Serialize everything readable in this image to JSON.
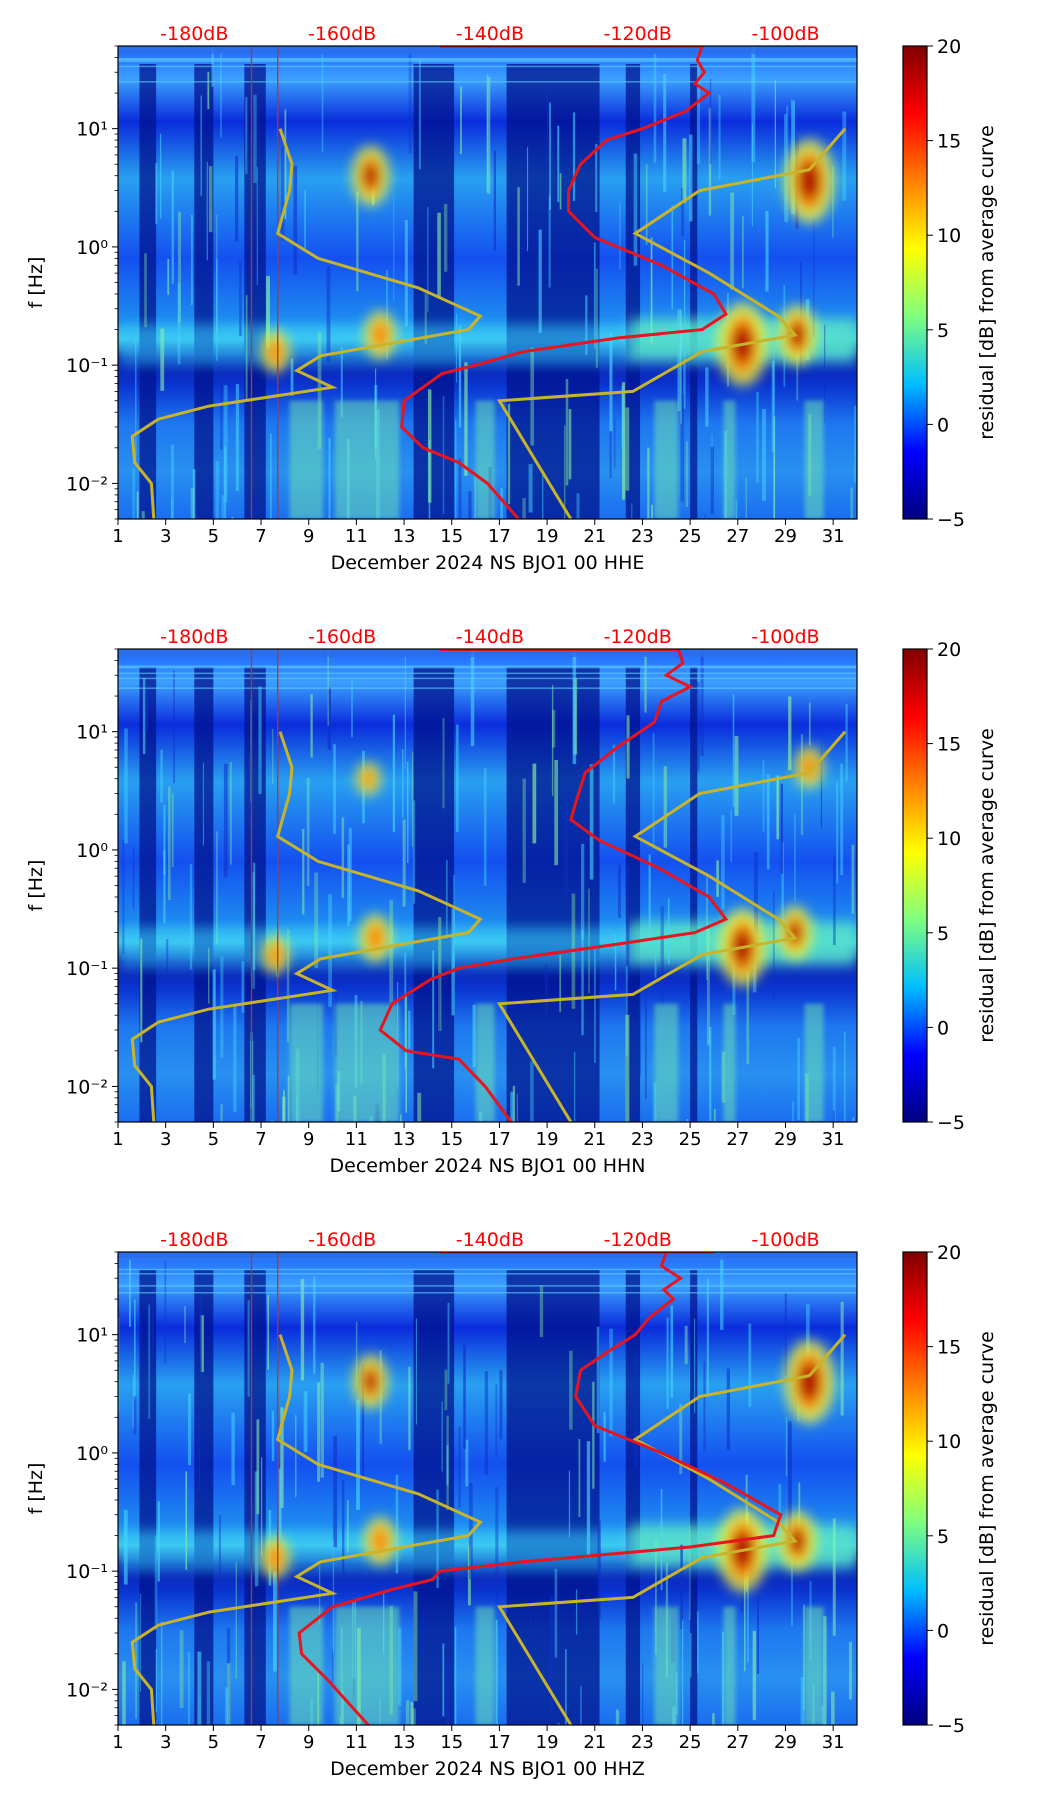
{
  "colormap_stops": [
    "#00007f",
    "#0000ff",
    "#00bfff",
    "#7fff7f",
    "#ffff00",
    "#ff8000",
    "#ff0000",
    "#800000"
  ],
  "colors": {
    "red_curve": "#e8141e",
    "model_curve": "#c8b42a",
    "vline": "#c83214",
    "db_label": "#ff0000"
  },
  "chart_data": [
    {
      "type": "heatmap",
      "xlabel": "December 2024 NS BJO1 00 HHE",
      "ylabel": "f [Hz]",
      "xlim": [
        1,
        32
      ],
      "xticks": [
        "1",
        "3",
        "5",
        "7",
        "9",
        "11",
        "13",
        "15",
        "17",
        "19",
        "21",
        "23",
        "25",
        "27",
        "29",
        "31"
      ],
      "ylim": [
        0.005,
        50
      ],
      "yticks": [
        "10⁻²",
        "10⁻¹",
        "10⁰",
        "10¹"
      ],
      "db_labels": [
        "-180dB",
        "-160dB",
        "-140dB",
        "-120dB",
        "-100dB"
      ],
      "colorbar": {
        "label": "residual [dB] from average curve",
        "min": -5,
        "max": 20,
        "ticks": [
          "20",
          "15",
          "10",
          "5",
          "0",
          "−5"
        ]
      },
      "vlines": [
        6.6,
        7.7
      ],
      "hot_spots": [
        [
          11.6,
          4.0,
          3.0
        ],
        [
          30.0,
          3.6,
          5.0
        ],
        [
          27.2,
          0.15,
          5.0
        ],
        [
          7.6,
          0.13,
          1.5
        ],
        [
          12.0,
          0.18,
          2.0
        ],
        [
          29.5,
          0.18,
          3.0
        ]
      ],
      "red_curve": [
        [
          25.5,
          50
        ],
        [
          25.3,
          38
        ],
        [
          25.6,
          30
        ],
        [
          25.2,
          24
        ],
        [
          25.8,
          20
        ],
        [
          24.8,
          14
        ],
        [
          23,
          10
        ],
        [
          21.5,
          8
        ],
        [
          20.4,
          5
        ],
        [
          19.9,
          3
        ],
        [
          19.9,
          2
        ],
        [
          21,
          1.2
        ],
        [
          23.8,
          0.7
        ],
        [
          26,
          0.4
        ],
        [
          26.5,
          0.27
        ],
        [
          25.5,
          0.2
        ],
        [
          22,
          0.17
        ],
        [
          18,
          0.13
        ],
        [
          16,
          0.1
        ],
        [
          14.6,
          0.085
        ],
        [
          13,
          0.05
        ],
        [
          12.9,
          0.03
        ],
        [
          13.8,
          0.02
        ],
        [
          15.3,
          0.015
        ],
        [
          16.5,
          0.01
        ],
        [
          17.8,
          0.005
        ]
      ],
      "red_top_segment": [
        [
          14.5,
          50
        ],
        [
          25.5,
          50
        ]
      ],
      "model_curve": [
        [
          7.8,
          10
        ],
        [
          8.3,
          5
        ],
        [
          8.2,
          3
        ],
        [
          7.7,
          1.3
        ],
        [
          9.4,
          0.8
        ],
        [
          13.6,
          0.45
        ],
        [
          16.2,
          0.26
        ],
        [
          15.7,
          0.2
        ],
        [
          9.5,
          0.12
        ],
        [
          8.5,
          0.09
        ],
        [
          10,
          0.065
        ],
        [
          4.8,
          0.045
        ],
        [
          2.7,
          0.035
        ],
        [
          1.6,
          0.025
        ],
        [
          1.7,
          0.015
        ],
        [
          2.4,
          0.01
        ],
        [
          2.5,
          0.005
        ]
      ],
      "model_curve_right": [
        [
          20,
          0.005
        ],
        [
          17,
          0.05
        ],
        [
          22.6,
          0.06
        ],
        [
          25.5,
          0.13
        ],
        [
          29.4,
          0.18
        ],
        [
          28.7,
          0.26
        ],
        [
          25.8,
          0.6
        ],
        [
          22.7,
          1.3
        ],
        [
          25.4,
          3
        ],
        [
          30,
          4.5
        ],
        [
          31.5,
          10
        ]
      ]
    },
    {
      "type": "heatmap",
      "xlabel": "December 2024 NS BJO1 00 HHN",
      "ylabel": "f [Hz]",
      "xlim": [
        1,
        32
      ],
      "xticks": [
        "1",
        "3",
        "5",
        "7",
        "9",
        "11",
        "13",
        "15",
        "17",
        "19",
        "21",
        "23",
        "25",
        "27",
        "29",
        "31"
      ],
      "ylim": [
        0.005,
        50
      ],
      "yticks": [
        "10⁻²",
        "10⁻¹",
        "10⁰",
        "10¹"
      ],
      "db_labels": [
        "-180dB",
        "-160dB",
        "-140dB",
        "-120dB",
        "-100dB"
      ],
      "colorbar": {
        "label": "residual [dB] from average curve",
        "min": -5,
        "max": 20,
        "ticks": [
          "20",
          "15",
          "10",
          "5",
          "0",
          "−5"
        ]
      },
      "vlines": [
        6.6,
        7.7
      ],
      "hot_spots": [
        [
          11.5,
          4.0,
          0.8
        ],
        [
          30.0,
          5.0,
          1.5
        ],
        [
          27.2,
          0.15,
          4.5
        ],
        [
          7.6,
          0.13,
          1.2
        ],
        [
          11.8,
          0.18,
          2.0
        ],
        [
          29.4,
          0.2,
          2.5
        ]
      ],
      "red_curve": [
        [
          24.5,
          50
        ],
        [
          24.7,
          38
        ],
        [
          24.0,
          30
        ],
        [
          25.0,
          24
        ],
        [
          23.8,
          18
        ],
        [
          23.5,
          12
        ],
        [
          22,
          7.5
        ],
        [
          20.6,
          4.5
        ],
        [
          20.2,
          2.5
        ],
        [
          20.0,
          1.8
        ],
        [
          21.2,
          1.2
        ],
        [
          23.7,
          0.7
        ],
        [
          25.8,
          0.4
        ],
        [
          26.5,
          0.26
        ],
        [
          25.2,
          0.2
        ],
        [
          22,
          0.16
        ],
        [
          17.6,
          0.12
        ],
        [
          15.3,
          0.1
        ],
        [
          14.1,
          0.08
        ],
        [
          12.5,
          0.05
        ],
        [
          12.0,
          0.03
        ],
        [
          13.1,
          0.02
        ],
        [
          15.3,
          0.017
        ],
        [
          16.4,
          0.01
        ],
        [
          17.5,
          0.005
        ]
      ],
      "red_top_segment": [
        [
          14.5,
          50
        ],
        [
          24.5,
          50
        ]
      ],
      "model_curve": [
        [
          7.8,
          10
        ],
        [
          8.3,
          5
        ],
        [
          8.2,
          3
        ],
        [
          7.7,
          1.3
        ],
        [
          9.4,
          0.8
        ],
        [
          13.6,
          0.45
        ],
        [
          16.2,
          0.26
        ],
        [
          15.7,
          0.2
        ],
        [
          9.5,
          0.12
        ],
        [
          8.5,
          0.09
        ],
        [
          10,
          0.065
        ],
        [
          4.8,
          0.045
        ],
        [
          2.7,
          0.035
        ],
        [
          1.6,
          0.025
        ],
        [
          1.7,
          0.015
        ],
        [
          2.4,
          0.01
        ],
        [
          2.5,
          0.005
        ]
      ],
      "model_curve_right": [
        [
          20,
          0.005
        ],
        [
          17,
          0.05
        ],
        [
          22.6,
          0.06
        ],
        [
          25.5,
          0.13
        ],
        [
          29.4,
          0.18
        ],
        [
          28.7,
          0.26
        ],
        [
          25.8,
          0.6
        ],
        [
          22.7,
          1.3
        ],
        [
          25.4,
          3
        ],
        [
          30,
          4.5
        ],
        [
          31.5,
          10
        ]
      ]
    },
    {
      "type": "heatmap",
      "xlabel": "December 2024 NS BJO1 00 HHZ",
      "ylabel": "f [Hz]",
      "xlim": [
        1,
        32
      ],
      "xticks": [
        "1",
        "3",
        "5",
        "7",
        "9",
        "11",
        "13",
        "15",
        "17",
        "19",
        "21",
        "23",
        "25",
        "27",
        "29",
        "31"
      ],
      "ylim": [
        0.005,
        50
      ],
      "yticks": [
        "10⁻²",
        "10⁻¹",
        "10⁰",
        "10¹"
      ],
      "db_labels": [
        "-180dB",
        "-160dB",
        "-140dB",
        "-120dB",
        "-100dB"
      ],
      "colorbar": {
        "label": "residual [dB] from average curve",
        "min": -5,
        "max": 20,
        "ticks": [
          "20",
          "15",
          "10",
          "5",
          "0",
          "−5"
        ]
      },
      "vlines": [
        6.6,
        7.7
      ],
      "hot_spots": [
        [
          11.6,
          4.0,
          2.5
        ],
        [
          30.0,
          4.0,
          5.0
        ],
        [
          27.2,
          0.15,
          5.0
        ],
        [
          7.6,
          0.13,
          1.5
        ],
        [
          12.0,
          0.18,
          2.0
        ],
        [
          29.5,
          0.18,
          3.0
        ]
      ],
      "red_curve": [
        [
          24.0,
          50
        ],
        [
          23.8,
          38
        ],
        [
          24.6,
          30
        ],
        [
          23.9,
          24
        ],
        [
          24.3,
          20
        ],
        [
          23.3,
          14
        ],
        [
          22.7,
          10
        ],
        [
          21.7,
          7.5
        ],
        [
          20.4,
          5
        ],
        [
          20.2,
          3
        ],
        [
          21,
          1.7
        ],
        [
          23.8,
          1.0
        ],
        [
          26.5,
          0.55
        ],
        [
          28.8,
          0.3
        ],
        [
          28.5,
          0.2
        ],
        [
          25,
          0.16
        ],
        [
          18,
          0.12
        ],
        [
          14.5,
          0.1
        ],
        [
          14.2,
          0.085
        ],
        [
          12.5,
          0.07
        ],
        [
          10,
          0.05
        ],
        [
          8.6,
          0.03
        ],
        [
          8.7,
          0.02
        ],
        [
          9.8,
          0.012
        ],
        [
          11.5,
          0.005
        ]
      ],
      "red_top_segment": [
        [
          14.5,
          50
        ],
        [
          26,
          50
        ]
      ],
      "model_curve": [
        [
          7.8,
          10
        ],
        [
          8.3,
          5
        ],
        [
          8.2,
          3
        ],
        [
          7.7,
          1.3
        ],
        [
          9.4,
          0.8
        ],
        [
          13.6,
          0.45
        ],
        [
          16.2,
          0.26
        ],
        [
          15.7,
          0.2
        ],
        [
          9.5,
          0.12
        ],
        [
          8.5,
          0.09
        ],
        [
          10,
          0.065
        ],
        [
          4.8,
          0.045
        ],
        [
          2.7,
          0.035
        ],
        [
          1.6,
          0.025
        ],
        [
          1.7,
          0.015
        ],
        [
          2.4,
          0.01
        ],
        [
          2.5,
          0.005
        ]
      ],
      "model_curve_right": [
        [
          20,
          0.005
        ],
        [
          17,
          0.05
        ],
        [
          22.6,
          0.06
        ],
        [
          25.5,
          0.13
        ],
        [
          29.4,
          0.18
        ],
        [
          28.7,
          0.26
        ],
        [
          25.8,
          0.6
        ],
        [
          22.7,
          1.3
        ],
        [
          25.4,
          3
        ],
        [
          30,
          4.5
        ],
        [
          31.5,
          10
        ]
      ]
    }
  ]
}
